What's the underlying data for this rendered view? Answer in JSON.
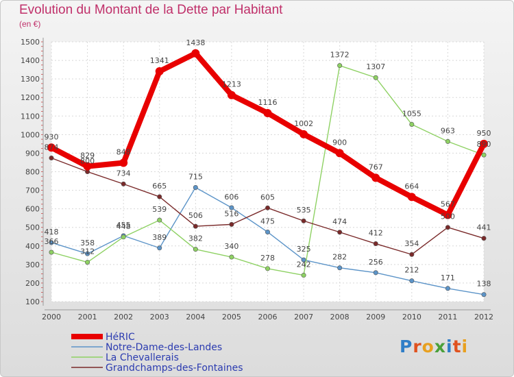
{
  "header": {
    "title": "Evolution du Montant de la Dette par Habitant",
    "subtitle": "(en €)"
  },
  "logo": {
    "letters": [
      "P",
      "r",
      "o",
      "x",
      "i",
      "t",
      "i"
    ],
    "colors": [
      "#2f7ec7",
      "#e0521f",
      "#e8a020",
      "#4aa03a",
      "#2f7ec7",
      "#e0521f",
      "#e8a020"
    ]
  },
  "chart_data": {
    "type": "line",
    "x": [
      "2000",
      "2001",
      "2002",
      "2003",
      "2004",
      "2005",
      "2006",
      "2007",
      "2008",
      "2009",
      "2010",
      "2011",
      "2012"
    ],
    "ylim": [
      100,
      1500
    ],
    "yticks": [
      "100",
      "200",
      "300",
      "400",
      "500",
      "600",
      "700",
      "800",
      "900",
      "1000",
      "1100",
      "1200",
      "1300",
      "1400",
      "1500"
    ],
    "grid": true,
    "legend_position": "bottom",
    "series": [
      {
        "name": "HéRIC",
        "color": "#e80000",
        "values": [
          930,
          829,
          848,
          1341,
          1438,
          1213,
          1116,
          1002,
          900,
          767,
          664,
          567,
          950
        ]
      },
      {
        "name": "Notre-Dame-des-Landes",
        "color": "#5c94c8",
        "values": [
          418,
          358,
          455,
          389,
          715,
          606,
          475,
          325,
          282,
          256,
          212,
          171,
          138
        ]
      },
      {
        "name": "La Chevallerais",
        "color": "#8ed163",
        "values": [
          366,
          312,
          448,
          539,
          382,
          340,
          278,
          242,
          1372,
          1307,
          1055,
          963,
          890
        ]
      },
      {
        "name": "Grandchamps-des-Fontaines",
        "color": "#7a2a2a",
        "values": [
          874,
          800,
          734,
          665,
          506,
          516,
          605,
          535,
          474,
          412,
          354,
          500,
          441
        ]
      }
    ],
    "labels": [
      [
        "930",
        "829",
        "848",
        "1341",
        "1438",
        "1213",
        "1116",
        "1002",
        "900",
        "767",
        "664",
        "567",
        "950"
      ],
      [
        "418",
        "358",
        "455",
        "389",
        "715",
        "606",
        "475",
        "325",
        "282",
        "256",
        "212",
        "171",
        "138"
      ],
      [
        "366",
        "312",
        "448",
        "539",
        "382",
        "340",
        "278",
        "242",
        "1372",
        "1307",
        "1055",
        "963",
        "890"
      ],
      [
        "874",
        "800",
        "734",
        "665",
        "506",
        "516",
        "605",
        "535",
        "474",
        "412",
        "354",
        "500",
        "441"
      ]
    ]
  }
}
